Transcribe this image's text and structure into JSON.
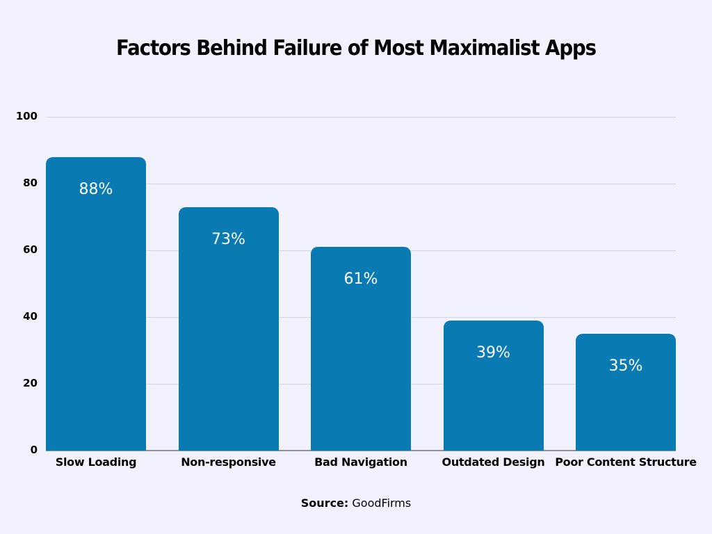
{
  "chart_data": {
    "type": "bar",
    "title": "Factors Behind Failure of Most Maximalist Apps",
    "categories": [
      "Slow Loading",
      "Non-responsive",
      "Bad Navigation",
      "Outdated Design",
      "Poor Content Structure"
    ],
    "values": [
      88,
      73,
      61,
      39,
      35
    ],
    "value_labels": [
      "88%",
      "73%",
      "61%",
      "39%",
      "35%"
    ],
    "xlabel": "",
    "ylabel": "",
    "ylim": [
      0,
      100
    ],
    "yticks": [
      0,
      20,
      40,
      60,
      80,
      100
    ],
    "grid": true,
    "legend": null,
    "bar_color": "#0a7ab3",
    "background_color": "#f2f2fe"
  },
  "footer": {
    "source_label": "Source:",
    "source_value": "GoodFirms"
  }
}
